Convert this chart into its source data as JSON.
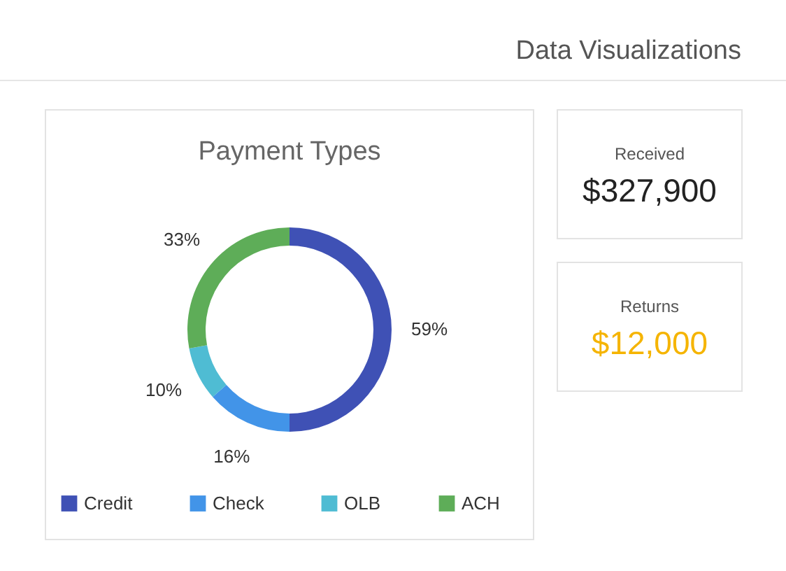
{
  "chart_data": [
    {
      "type": "other",
      "title": "Data Visualizations"
    },
    {
      "type": "donut",
      "title": "Payment Types",
      "categories": [
        "Credit",
        "Check",
        "OLB",
        "ACH"
      ],
      "values": [
        59,
        16,
        10,
        33
      ],
      "value_labels": [
        "59%",
        "16%",
        "10%",
        "33%"
      ],
      "colors": [
        "#3f51b5",
        "#4294e8",
        "#4fbcd3",
        "#5ead58"
      ],
      "legend": "bottom"
    },
    {
      "type": "other",
      "title": "Received",
      "annotations": [
        "$327,900"
      ]
    },
    {
      "type": "other",
      "title": "Returns",
      "annotations": [
        "$12,000"
      ],
      "color": "#f5b400"
    }
  ]
}
